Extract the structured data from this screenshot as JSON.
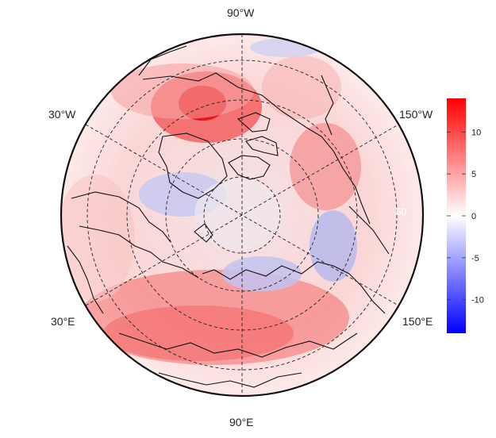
{
  "map": {
    "projection": "north polar stereographic",
    "lon_labels": {
      "top": "90°W",
      "bottom": "90°E",
      "upper_left": "30°W",
      "upper_right": "150°W",
      "lower_left": "30°E",
      "lower_right": "150°E",
      "inner_right": "60"
    }
  },
  "colorbar": {
    "ticks": [
      "10",
      "5",
      "0",
      "-5",
      "-10"
    ],
    "tick_values": [
      10,
      5,
      0,
      -5,
      -10
    ],
    "min": -14,
    "max": 14,
    "colors": {
      "high": "#ff0000",
      "mid": "#ffffff",
      "low": "#0000ff"
    }
  }
}
